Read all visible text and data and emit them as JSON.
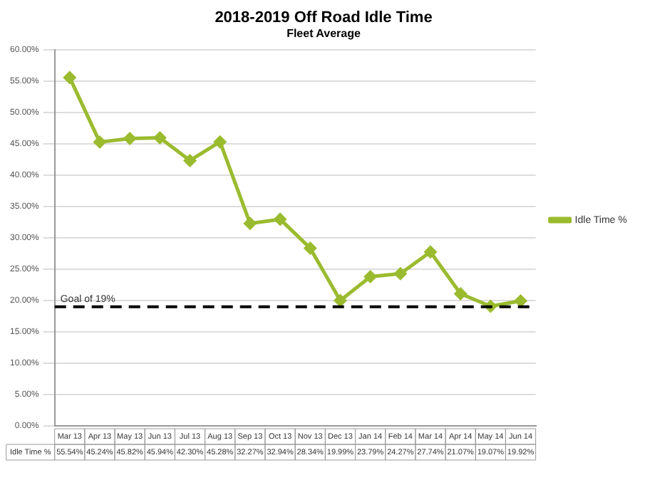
{
  "chart_data": {
    "type": "line",
    "title": "2018-2019 Off Road Idle Time",
    "subtitle": "Fleet Average",
    "categories": [
      "Mar 13",
      "Apr 13",
      "May 13",
      "Jun 13",
      "Jul 13",
      "Aug 13",
      "Sep 13",
      "Oct 13",
      "Nov 13",
      "Dec 13",
      "Jan 14",
      "Feb 14",
      "Mar 14",
      "Apr 14",
      "May 14",
      "Jun 14"
    ],
    "series": [
      {
        "name": "Idle Time %",
        "color": "#9bbb2f",
        "values": [
          55.54,
          45.24,
          45.82,
          45.94,
          42.3,
          45.28,
          32.27,
          32.94,
          28.34,
          19.99,
          23.79,
          24.27,
          27.74,
          21.07,
          19.07,
          19.92
        ],
        "value_labels": [
          "55.54%",
          "45.24%",
          "45.82%",
          "45.94%",
          "42.30%",
          "45.28%",
          "32.27%",
          "32.94%",
          "28.34%",
          "19.99%",
          "23.79%",
          "24.27%",
          "27.74%",
          "21.07%",
          "19.07%",
          "19.92%"
        ]
      }
    ],
    "ylim": [
      0,
      60
    ],
    "yticks": [
      {
        "value": 0,
        "label": "0.00%"
      },
      {
        "value": 5,
        "label": "5.00%"
      },
      {
        "value": 10,
        "label": "10.00%"
      },
      {
        "value": 15,
        "label": "15.00%"
      },
      {
        "value": 20,
        "label": "20.00%"
      },
      {
        "value": 25,
        "label": "25.00%"
      },
      {
        "value": 30,
        "label": "30.00%"
      },
      {
        "value": 35,
        "label": "35.00%"
      },
      {
        "value": 40,
        "label": "40.00%"
      },
      {
        "value": 45,
        "label": "45.00%"
      },
      {
        "value": 50,
        "label": "50.00%"
      },
      {
        "value": 55,
        "label": "55.00%"
      },
      {
        "value": 60,
        "label": "60.00%"
      }
    ],
    "ref_lines": [
      {
        "axis": "y",
        "value": 19,
        "label": "Goal of 19%",
        "color": "#000000",
        "line_style": "dashed"
      }
    ],
    "grid": "y",
    "legend": "right",
    "marker": "diamond",
    "line_style": "solid"
  }
}
